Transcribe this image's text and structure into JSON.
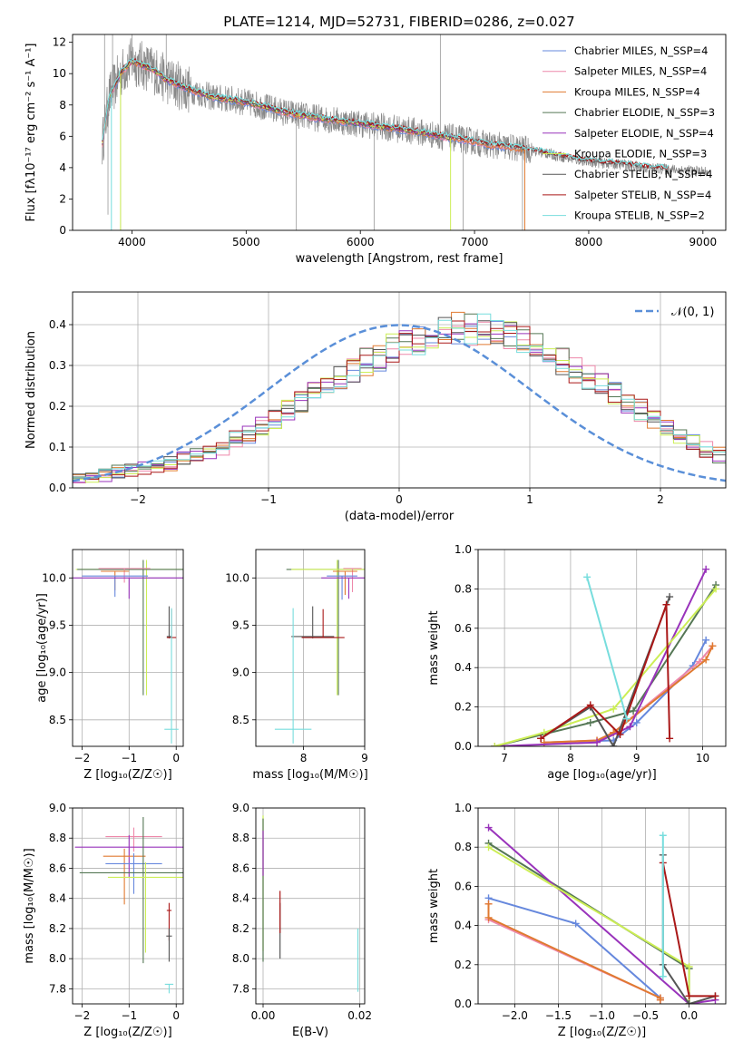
{
  "page": {
    "title": "PLATE=1214, MJD=52731, FIBERID=0286, z=0.027"
  },
  "colors": {
    "chabrier_miles": "#6688dd",
    "salpeter_miles": "#ee88aa",
    "kroupa_miles": "#e07a30",
    "chabrier_elodie": "#557755",
    "salpeter_elodie": "#9933bb",
    "kroupa_elodie": "#ccee55",
    "chabrier_stelib": "#555555",
    "salpeter_stelib": "#aa1818",
    "kroupa_stelib": "#77dddd",
    "data": "#888888",
    "normal": "#5a8fd8"
  },
  "chart_data": [
    {
      "id": "spectrum",
      "type": "line",
      "title": "PLATE=1214, MJD=52731, FIBERID=0286, z=0.027",
      "xlabel": "wavelength [Angstrom, rest frame]",
      "ylabel": "Flux [fλ10⁻¹⁷ erg cm⁻² s⁻¹ A⁻¹]",
      "xlim": [
        3480,
        9200
      ],
      "ylim": [
        0,
        12.5
      ],
      "xticks": [
        4000,
        5000,
        6000,
        7000,
        8000,
        9000
      ],
      "yticks": [
        0,
        2,
        4,
        6,
        8,
        10,
        12
      ],
      "grid": false,
      "legend_position": "top-right",
      "data_curve": {
        "x": [
          3740,
          3800,
          3900,
          4000,
          4100,
          4200,
          4300,
          4400,
          4500,
          4700,
          4900,
          5100,
          5300,
          5500,
          5700,
          5900,
          6100,
          6300,
          6500,
          6700,
          6900,
          7100,
          7300,
          7500,
          7700,
          7900,
          8100,
          8300,
          8500,
          8700,
          8900,
          9050
        ],
        "y": [
          5.5,
          8.5,
          10.0,
          10.8,
          10.5,
          10.2,
          9.6,
          9.3,
          9.0,
          8.5,
          8.3,
          8.0,
          7.6,
          7.3,
          7.1,
          6.9,
          6.7,
          6.5,
          6.3,
          6.0,
          5.8,
          5.5,
          5.3,
          5.1,
          4.8,
          4.5,
          4.3,
          4.2,
          4.0,
          3.9,
          3.8,
          3.7
        ]
      },
      "series": [
        {
          "name": "Chabrier MILES, N_SSP=4",
          "color_key": "chabrier_miles"
        },
        {
          "name": "Salpeter MILES, N_SSP=4",
          "color_key": "salpeter_miles"
        },
        {
          "name": "Kroupa MILES, N_SSP=4",
          "color_key": "kroupa_miles"
        },
        {
          "name": "Chabrier ELODIE, N_SSP=3",
          "color_key": "chabrier_elodie"
        },
        {
          "name": "Salpeter ELODIE, N_SSP=4",
          "color_key": "salpeter_elodie"
        },
        {
          "name": "Kroupa ELODIE, N_SSP=3",
          "color_key": "kroupa_elodie"
        },
        {
          "name": "Chabrier STELIB, N_SSP=4",
          "color_key": "chabrier_stelib"
        },
        {
          "name": "Salpeter STELIB, N_SSP=4",
          "color_key": "salpeter_stelib"
        },
        {
          "name": "Kroupa STELIB, N_SSP=2",
          "color_key": "kroupa_stelib"
        }
      ]
    },
    {
      "id": "residual_hist",
      "type": "bar",
      "xlabel": "(data-model)/error",
      "ylabel": "Normed distribution",
      "xlim": [
        -2.5,
        2.5
      ],
      "ylim": [
        0,
        0.48
      ],
      "xticks": [
        -2,
        -1,
        0,
        1,
        2
      ],
      "yticks": [
        0.0,
        0.1,
        0.2,
        0.3,
        0.4
      ],
      "grid": true,
      "legend_position": "top-right",
      "normal_label": "𝒩(0, 1)",
      "bin_width": 0.1,
      "bin_start": -2.5,
      "base": [
        0.02,
        0.025,
        0.03,
        0.04,
        0.045,
        0.05,
        0.055,
        0.06,
        0.07,
        0.08,
        0.09,
        0.1,
        0.12,
        0.13,
        0.15,
        0.17,
        0.19,
        0.21,
        0.23,
        0.25,
        0.27,
        0.29,
        0.31,
        0.32,
        0.34,
        0.35,
        0.36,
        0.37,
        0.38,
        0.39,
        0.39,
        0.39,
        0.38,
        0.37,
        0.36,
        0.35,
        0.33,
        0.31,
        0.29,
        0.27,
        0.25,
        0.23,
        0.21,
        0.19,
        0.17,
        0.15,
        0.13,
        0.11,
        0.095,
        0.08,
        0.07,
        0.06,
        0.05,
        0.045,
        0.04,
        0.035,
        0.03,
        0.028,
        0.025,
        0.022
      ]
    },
    {
      "id": "age_vs_Z",
      "type": "scatter",
      "xlabel": "Z [log₁₀(Z/Z☉)]",
      "ylabel": "age  [log₁₀(age/yr)]",
      "xlim": [
        -2.2,
        0.15
      ],
      "ylim": [
        8.22,
        10.3
      ],
      "xticks": [
        -2,
        -1,
        0
      ],
      "yticks": [
        8.5,
        9.0,
        9.5,
        10.0
      ],
      "grid": true,
      "points": [
        {
          "color_key": "kroupa_elodie",
          "x": -0.63,
          "y": 10.09,
          "xerr": 1.5,
          "yerr": [
            1.33,
            0.1
          ]
        },
        {
          "color_key": "chabrier_elodie",
          "x": -0.7,
          "y": 10.09,
          "xerr": 1.4,
          "yerr": [
            1.33,
            0.1
          ]
        },
        {
          "color_key": "salpeter_miles",
          "x": -1.1,
          "y": 10.1,
          "xerr": 0.55,
          "yerr": [
            0.15,
            0.0
          ]
        },
        {
          "color_key": "kroupa_miles",
          "x": -1.3,
          "y": 10.07,
          "xerr": 0.3,
          "yerr": [
            0.2,
            0.0
          ]
        },
        {
          "color_key": "chabrier_miles",
          "x": -1.3,
          "y": 10.02,
          "xerr": 0.7,
          "yerr": [
            0.22,
            0.0
          ]
        },
        {
          "color_key": "salpeter_elodie",
          "x": -1.0,
          "y": 10.0,
          "xerr": 1.3,
          "yerr": [
            0.22,
            0.0
          ]
        },
        {
          "color_key": "chabrier_stelib",
          "x": -0.15,
          "y": 9.38,
          "xerr": 0.05,
          "yerr": [
            0.02,
            0.32
          ]
        },
        {
          "color_key": "salpeter_stelib",
          "x": -0.1,
          "y": 9.37,
          "xerr": 0.1,
          "yerr": [
            0.0,
            0.3
          ]
        },
        {
          "color_key": "kroupa_stelib",
          "x": -0.1,
          "y": 8.4,
          "xerr": 0.15,
          "yerr": [
            0.15,
            1.28
          ]
        }
      ]
    },
    {
      "id": "age_vs_mass",
      "type": "scatter",
      "xlabel": "mass [log₁₀(M/M☉)]",
      "ylabel": "",
      "xlim": [
        7.22,
        9.0
      ],
      "ylim": [
        8.22,
        10.3
      ],
      "xticks": [
        8,
        9
      ],
      "yticks": [
        8.5,
        9.0,
        9.5,
        10.0
      ],
      "grid": true,
      "points": [
        {
          "color_key": "chabrier_elodie",
          "x": 8.57,
          "y": 10.09,
          "xerr": 0.85,
          "yerr": [
            1.33,
            0.1
          ]
        },
        {
          "color_key": "kroupa_elodie",
          "x": 8.55,
          "y": 10.09,
          "xerr": 0.75,
          "yerr": [
            1.33,
            0.1
          ]
        },
        {
          "color_key": "salpeter_miles",
          "x": 8.8,
          "y": 10.1,
          "xerr": 0.15,
          "yerr": [
            0.25,
            0.0
          ]
        },
        {
          "color_key": "kroupa_miles",
          "x": 8.68,
          "y": 10.07,
          "xerr": 0.2,
          "yerr": [
            0.25,
            0.0
          ]
        },
        {
          "color_key": "chabrier_miles",
          "x": 8.63,
          "y": 10.02,
          "xerr": 0.25,
          "yerr": [
            0.25,
            0.0
          ]
        },
        {
          "color_key": "salpeter_elodie",
          "x": 8.74,
          "y": 10.0,
          "xerr": 0.45,
          "yerr": [
            0.22,
            0.0
          ]
        },
        {
          "color_key": "chabrier_stelib",
          "x": 8.15,
          "y": 9.38,
          "xerr": 0.35,
          "yerr": [
            0.02,
            0.32
          ]
        },
        {
          "color_key": "salpeter_stelib",
          "x": 8.32,
          "y": 9.37,
          "xerr": 0.35,
          "yerr": [
            0.0,
            0.3
          ]
        },
        {
          "color_key": "kroupa_stelib",
          "x": 7.83,
          "y": 8.4,
          "xerr": 0.3,
          "yerr": [
            0.15,
            1.28
          ]
        }
      ]
    },
    {
      "id": "weight_vs_age",
      "type": "line",
      "xlabel": "age  [log₁₀(age/yr)]",
      "ylabel": "mass weight",
      "xlim": [
        6.6,
        10.35
      ],
      "ylim": [
        0,
        1.0
      ],
      "xticks": [
        7,
        8,
        9,
        10
      ],
      "yticks": [
        0.0,
        0.2,
        0.4,
        0.6,
        0.8,
        1.0
      ],
      "grid": true,
      "series": [
        {
          "color_key": "chabrier_miles",
          "x": [
            7.6,
            8.65,
            9.0,
            9.85,
            10.05
          ],
          "y": [
            0.02,
            0.03,
            0.12,
            0.41,
            0.54
          ]
        },
        {
          "color_key": "salpeter_miles",
          "x": [
            7.6,
            8.4,
            8.65,
            9.95,
            10.15
          ],
          "y": [
            0.02,
            0.03,
            0.07,
            0.43,
            0.51
          ]
        },
        {
          "color_key": "kroupa_miles",
          "x": [
            7.6,
            8.4,
            8.65,
            10.05,
            10.15
          ],
          "y": [
            0.02,
            0.03,
            0.07,
            0.44,
            0.51
          ]
        },
        {
          "color_key": "chabrier_elodie",
          "x": [
            6.85,
            8.3,
            8.95,
            10.2
          ],
          "y": [
            0.0,
            0.12,
            0.18,
            0.82
          ]
        },
        {
          "color_key": "salpeter_elodie",
          "x": [
            6.85,
            8.4,
            8.9,
            10.05
          ],
          "y": [
            0.0,
            0.02,
            0.1,
            0.9
          ]
        },
        {
          "color_key": "kroupa_elodie",
          "x": [
            6.85,
            7.6,
            8.65,
            10.2
          ],
          "y": [
            0.0,
            0.07,
            0.19,
            0.8
          ]
        },
        {
          "color_key": "chabrier_stelib",
          "x": [
            7.55,
            8.3,
            8.65,
            9.5
          ],
          "y": [
            0.04,
            0.2,
            0.0,
            0.76
          ]
        },
        {
          "color_key": "salpeter_stelib",
          "x": [
            7.55,
            8.3,
            8.75,
            9.45,
            9.5
          ],
          "y": [
            0.04,
            0.21,
            0.06,
            0.72,
            0.04
          ]
        },
        {
          "color_key": "kroupa_stelib",
          "x": [
            8.25,
            8.85
          ],
          "y": [
            0.86,
            0.14
          ]
        }
      ]
    },
    {
      "id": "mass_vs_Z",
      "type": "scatter",
      "xlabel": "Z [log₁₀(Z/Z☉)]",
      "ylabel": "mass [log₁₀(M/M☉)]",
      "xlim": [
        -2.2,
        0.15
      ],
      "ylim": [
        7.7,
        9.0
      ],
      "xticks": [
        -2,
        -1,
        0
      ],
      "yticks": [
        7.8,
        8.0,
        8.2,
        8.4,
        8.6,
        8.8,
        9.0
      ],
      "grid": true,
      "points": [
        {
          "color_key": "salpeter_miles",
          "x": -0.9,
          "y": 8.81,
          "xerr": 0.6,
          "yerr": [
            0.1,
            0.06
          ]
        },
        {
          "color_key": "salpeter_elodie",
          "x": -1.0,
          "y": 8.74,
          "xerr": 1.15,
          "yerr": [
            0.2,
            0.08
          ]
        },
        {
          "color_key": "kroupa_miles",
          "x": -1.1,
          "y": 8.68,
          "xerr": 0.45,
          "yerr": [
            0.32,
            0.05
          ]
        },
        {
          "color_key": "chabrier_miles",
          "x": -0.9,
          "y": 8.63,
          "xerr": 0.6,
          "yerr": [
            0.2,
            0.07
          ]
        },
        {
          "color_key": "chabrier_elodie",
          "x": -0.7,
          "y": 8.57,
          "xerr": 1.35,
          "yerr": [
            0.6,
            0.37
          ]
        },
        {
          "color_key": "kroupa_elodie",
          "x": -0.65,
          "y": 8.54,
          "xerr": 0.8,
          "yerr": [
            0.5,
            0.1
          ]
        },
        {
          "color_key": "salpeter_stelib",
          "x": -0.15,
          "y": 8.32,
          "xerr": 0.05,
          "yerr": [
            0.2,
            0.05
          ]
        },
        {
          "color_key": "chabrier_stelib",
          "x": -0.15,
          "y": 8.15,
          "xerr": 0.06,
          "yerr": [
            0.17,
            0.05
          ]
        },
        {
          "color_key": "kroupa_stelib",
          "x": -0.15,
          "y": 7.83,
          "xerr": 0.09,
          "yerr": [
            0.06,
            0.0
          ]
        }
      ]
    },
    {
      "id": "mass_vs_ebv",
      "type": "scatter",
      "xlabel": "E(B-V)",
      "ylabel": "",
      "xlim": [
        -0.0015,
        0.021
      ],
      "ylim": [
        7.7,
        9.0
      ],
      "xticks": [
        0.0,
        0.02
      ],
      "xtick_labels": [
        "0.00",
        "0.02"
      ],
      "yticks": [
        7.8,
        8.0,
        8.2,
        8.4,
        8.6,
        8.8,
        9.0
      ],
      "grid": true,
      "vbars": [
        {
          "color_key": "kroupa_elodie",
          "x": 0.0,
          "y0": 8.05,
          "y1": 8.95
        },
        {
          "color_key": "chabrier_elodie",
          "x": 0.0,
          "y0": 7.98,
          "y1": 8.93
        },
        {
          "color_key": "salpeter_elodie",
          "x": 0.0,
          "y0": 8.55,
          "y1": 8.85
        },
        {
          "color_key": "chabrier_stelib",
          "x": 0.0035,
          "y0": 8.0,
          "y1": 8.37
        },
        {
          "color_key": "salpeter_stelib",
          "x": 0.0035,
          "y0": 8.17,
          "y1": 8.45
        },
        {
          "color_key": "kroupa_stelib",
          "x": 0.0196,
          "y0": 7.78,
          "y1": 8.2
        }
      ]
    },
    {
      "id": "weight_vs_Z",
      "type": "line",
      "xlabel": "Z [log₁₀(Z/Z☉)]",
      "ylabel": "mass weight",
      "xlim": [
        -2.42,
        0.42
      ],
      "ylim": [
        0,
        1.0
      ],
      "xticks": [
        -2.0,
        -1.5,
        -1.0,
        -0.5,
        0.0
      ],
      "xtick_labels": [
        "−2.0",
        "−1.5",
        "−1.0",
        "−0.5",
        "0.0"
      ],
      "yticks": [
        0.0,
        0.2,
        0.4,
        0.6,
        0.8,
        1.0
      ],
      "grid": true,
      "series": [
        {
          "color_key": "chabrier_miles",
          "x": [
            -2.3,
            -1.3,
            -0.33,
            -0.33
          ],
          "y": [
            0.54,
            0.41,
            0.03,
            0.02
          ]
        },
        {
          "color_key": "salpeter_miles",
          "x": [
            -2.3,
            -2.3,
            -0.33,
            -0.33
          ],
          "y": [
            0.51,
            0.43,
            0.03,
            0.02
          ]
        },
        {
          "color_key": "kroupa_miles",
          "x": [
            -2.3,
            -2.3,
            -0.33,
            -0.33
          ],
          "y": [
            0.51,
            0.44,
            0.03,
            0.02
          ]
        },
        {
          "color_key": "chabrier_elodie",
          "x": [
            -2.3,
            0.0,
            0.0
          ],
          "y": [
            0.82,
            0.18,
            0.0
          ]
        },
        {
          "color_key": "salpeter_elodie",
          "x": [
            -2.3,
            0.0,
            0.3
          ],
          "y": [
            0.9,
            0.0,
            0.02
          ]
        },
        {
          "color_key": "kroupa_elodie",
          "x": [
            -2.3,
            0.0,
            0.0
          ],
          "y": [
            0.8,
            0.19,
            0.0
          ]
        },
        {
          "color_key": "chabrier_stelib",
          "x": [
            -0.3,
            -0.3,
            0.0,
            0.3
          ],
          "y": [
            0.76,
            0.2,
            0.0,
            0.04
          ]
        },
        {
          "color_key": "salpeter_stelib",
          "x": [
            -0.3,
            0.0,
            0.3
          ],
          "y": [
            0.72,
            0.04,
            0.04
          ]
        },
        {
          "color_key": "kroupa_stelib",
          "x": [
            -0.3,
            -0.3
          ],
          "y": [
            0.86,
            0.14
          ]
        }
      ]
    }
  ]
}
